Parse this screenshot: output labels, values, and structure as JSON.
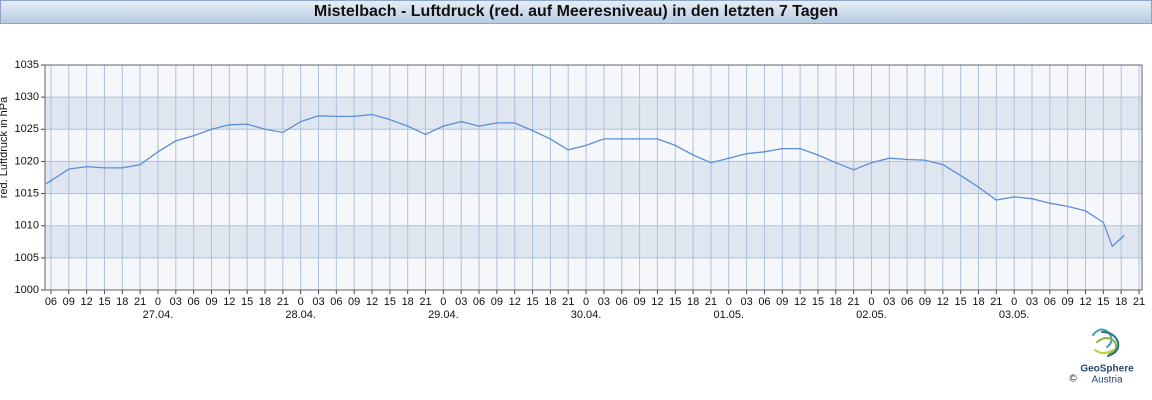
{
  "chart_data": {
    "type": "line",
    "title": "Mistelbach - Luftdruck (red. auf Meeresniveau) in den letzten 7 Tagen",
    "y_label": "red. Luftdruck in hPa",
    "logo": {
      "name": "GeoSphere",
      "sub": "Austria",
      "copyright": "©"
    },
    "x": [
      -0.8,
      0,
      3,
      6,
      9,
      12,
      15,
      18,
      21,
      24,
      27,
      30,
      33,
      36,
      39,
      42,
      45,
      48,
      51,
      54,
      57,
      60,
      63,
      66,
      69,
      72,
      75,
      78,
      81,
      84,
      87,
      90,
      93,
      96,
      99,
      102,
      105,
      108,
      111,
      114,
      117,
      120,
      123,
      126,
      129,
      132,
      135,
      138,
      141,
      144,
      147,
      150,
      153,
      156,
      159,
      162,
      165,
      168,
      171,
      174,
      177,
      178.5,
      180.5
    ],
    "series": [
      {
        "name": "red. Luftdruck",
        "color": "#5b8fd8",
        "values": [
          1016.5,
          1017,
          1018.8,
          1019.2,
          1019,
          1019,
          1019.5,
          1021.5,
          1023.2,
          1024,
          1025,
          1025.7,
          1025.8,
          1025,
          1024.5,
          1026.2,
          1027.1,
          1027,
          1027,
          1027.3,
          1026.5,
          1025.5,
          1024.2,
          1025.5,
          1026.2,
          1025.5,
          1026,
          1026,
          1024.8,
          1023.5,
          1021.8,
          1022.5,
          1023.5,
          1023.5,
          1023.5,
          1023.5,
          1022.5,
          1021,
          1019.8,
          1020.5,
          1021.2,
          1021.5,
          1022,
          1022,
          1021,
          1019.8,
          1018.7,
          1019.8,
          1020.5,
          1020.3,
          1020.2,
          1019.5,
          1017.8,
          1016,
          1014,
          1014.5,
          1014.2,
          1013.5,
          1013,
          1012.3,
          1010.5,
          1006.8,
          1008.5
        ]
      }
    ],
    "xlim": [
      -1,
      183.5
    ],
    "ylim": [
      1000,
      1035
    ],
    "yticks": [
      1000,
      1005,
      1010,
      1015,
      1020,
      1025,
      1030,
      1035
    ],
    "xticks": [
      {
        "value": 0,
        "label": "06"
      },
      {
        "value": 3,
        "label": "09"
      },
      {
        "value": 6,
        "label": "12"
      },
      {
        "value": 9,
        "label": "15"
      },
      {
        "value": 12,
        "label": "18"
      },
      {
        "value": 15,
        "label": "21"
      },
      {
        "value": 18,
        "label": "0"
      },
      {
        "value": 21,
        "label": "03"
      },
      {
        "value": 24,
        "label": "06"
      },
      {
        "value": 27,
        "label": "09"
      },
      {
        "value": 30,
        "label": "12"
      },
      {
        "value": 33,
        "label": "15"
      },
      {
        "value": 36,
        "label": "18"
      },
      {
        "value": 39,
        "label": "21"
      },
      {
        "value": 42,
        "label": "0"
      },
      {
        "value": 45,
        "label": "03"
      },
      {
        "value": 48,
        "label": "06"
      },
      {
        "value": 51,
        "label": "09"
      },
      {
        "value": 54,
        "label": "12"
      },
      {
        "value": 57,
        "label": "15"
      },
      {
        "value": 60,
        "label": "18"
      },
      {
        "value": 63,
        "label": "21"
      },
      {
        "value": 66,
        "label": "0"
      },
      {
        "value": 69,
        "label": "03"
      },
      {
        "value": 72,
        "label": "06"
      },
      {
        "value": 75,
        "label": "09"
      },
      {
        "value": 78,
        "label": "12"
      },
      {
        "value": 81,
        "label": "15"
      },
      {
        "value": 84,
        "label": "18"
      },
      {
        "value": 87,
        "label": "21"
      },
      {
        "value": 90,
        "label": "0"
      },
      {
        "value": 93,
        "label": "03"
      },
      {
        "value": 96,
        "label": "06"
      },
      {
        "value": 99,
        "label": "09"
      },
      {
        "value": 102,
        "label": "12"
      },
      {
        "value": 105,
        "label": "15"
      },
      {
        "value": 108,
        "label": "18"
      },
      {
        "value": 111,
        "label": "21"
      },
      {
        "value": 114,
        "label": "0"
      },
      {
        "value": 117,
        "label": "03"
      },
      {
        "value": 120,
        "label": "06"
      },
      {
        "value": 123,
        "label": "09"
      },
      {
        "value": 126,
        "label": "12"
      },
      {
        "value": 129,
        "label": "15"
      },
      {
        "value": 132,
        "label": "18"
      },
      {
        "value": 135,
        "label": "21"
      },
      {
        "value": 138,
        "label": "0"
      },
      {
        "value": 141,
        "label": "03"
      },
      {
        "value": 144,
        "label": "06"
      },
      {
        "value": 147,
        "label": "09"
      },
      {
        "value": 150,
        "label": "12"
      },
      {
        "value": 153,
        "label": "15"
      },
      {
        "value": 156,
        "label": "18"
      },
      {
        "value": 159,
        "label": "21"
      },
      {
        "value": 162,
        "label": "0"
      },
      {
        "value": 165,
        "label": "03"
      },
      {
        "value": 168,
        "label": "06"
      },
      {
        "value": 171,
        "label": "09"
      },
      {
        "value": 174,
        "label": "12"
      },
      {
        "value": 177,
        "label": "15"
      },
      {
        "value": 180,
        "label": "18"
      },
      {
        "value": 183,
        "label": "21"
      }
    ],
    "date_labels": [
      {
        "value": 18,
        "label": "27.04."
      },
      {
        "value": 42,
        "label": "28.04."
      },
      {
        "value": 66,
        "label": "29.04."
      },
      {
        "value": 90,
        "label": "30.04."
      },
      {
        "value": 114,
        "label": "01.05."
      },
      {
        "value": 138,
        "label": "02.05."
      },
      {
        "value": 162,
        "label": "03.05."
      }
    ],
    "grid": true,
    "bands": true
  }
}
